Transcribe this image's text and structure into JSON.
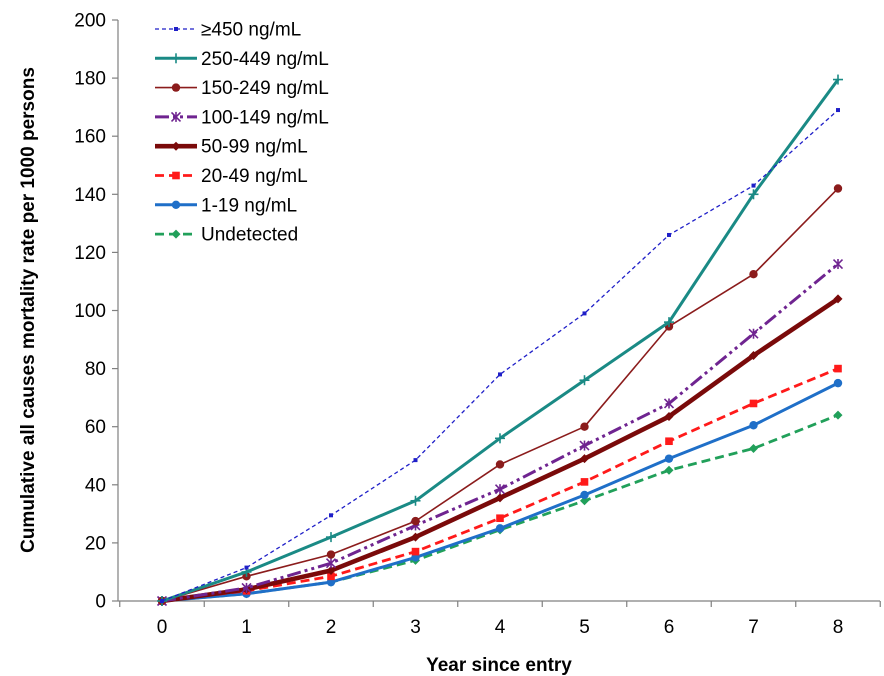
{
  "chart_data": {
    "type": "line",
    "title": "",
    "xlabel": "Year since entry",
    "ylabel": "Cumulative all causes mortality rate per 1000 persons",
    "x": [
      0,
      1,
      2,
      3,
      4,
      5,
      6,
      7,
      8
    ],
    "xlim": [
      0,
      8
    ],
    "ylim": [
      0,
      200
    ],
    "yticks": [
      0,
      20,
      40,
      60,
      80,
      100,
      120,
      140,
      160,
      180,
      200
    ],
    "grid": false,
    "legend_position": "top-left",
    "series": [
      {
        "name": "≥450 ng/mL",
        "values": [
          0,
          11.5,
          29.5,
          48.5,
          78,
          99,
          126,
          143,
          169
        ],
        "color": "#1f1fc8",
        "dash": "short-dash",
        "marker": "small-square"
      },
      {
        "name": "250-449  ng/mL",
        "values": [
          0,
          10,
          22,
          34.5,
          56,
          76,
          96,
          140,
          179.5
        ],
        "color": "#1a8a85",
        "dash": "solid",
        "marker": "plus"
      },
      {
        "name": "150-249  ng/mL",
        "values": [
          0,
          8.5,
          16,
          27.5,
          47,
          60,
          94.5,
          112.5,
          142
        ],
        "color": "#8b1c1c",
        "dash": "solid",
        "marker": "circle"
      },
      {
        "name": "100-149  ng/mL",
        "values": [
          0,
          4.5,
          13,
          26,
          38.5,
          53.5,
          68,
          92,
          116
        ],
        "color": "#6f2490",
        "dash": "dash-dot-dot",
        "marker": "star"
      },
      {
        "name": "50-99  ng/mL",
        "values": [
          0,
          4,
          10.5,
          22,
          35.5,
          49,
          63.5,
          84.5,
          104
        ],
        "color": "#7a0a0a",
        "dash": "solid-thick",
        "marker": "diamond"
      },
      {
        "name": "20-49  ng/mL",
        "values": [
          0,
          3.5,
          8.5,
          17,
          28.5,
          41,
          55,
          68,
          80
        ],
        "color": "#ff1a1a",
        "dash": "dash",
        "marker": "square"
      },
      {
        "name": "1-19  ng/mL",
        "values": [
          0,
          2.5,
          6.5,
          15,
          25,
          36.5,
          49,
          60.5,
          75
        ],
        "color": "#1f6fc8",
        "dash": "solid",
        "marker": "circle"
      },
      {
        "name": "Undetected",
        "values": [
          0,
          2.5,
          6.5,
          14,
          24.5,
          34.5,
          45,
          52.5,
          64
        ],
        "color": "#21a05a",
        "dash": "dash",
        "marker": "diamond"
      }
    ]
  }
}
